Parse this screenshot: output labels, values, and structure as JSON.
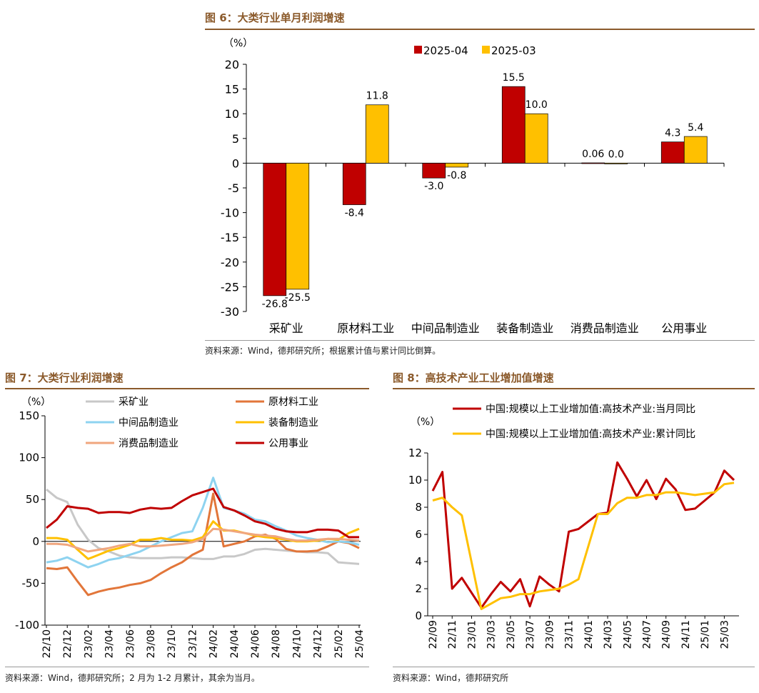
{
  "figures": [
    {
      "title": "图 6：大类行业单月利润增速",
      "source": "资料来源：Wind，德邦研究所；根据累计值与累计同比倒算。"
    },
    {
      "title": "图 7：大类行业利润增速",
      "source": "资料来源：Wind，德邦研究所；2 月为 1-2 月累计，其余为当月。"
    },
    {
      "title": "图 8：高技术产业工业增加值增速",
      "source": "资料来源：Wind，德邦研究所"
    }
  ],
  "chart_data": [
    {
      "type": "bar",
      "title": "图 6：大类行业单月利润增速",
      "ylabel": "（%）",
      "ylim": [
        -30,
        20
      ],
      "yticks": [
        "20",
        "15",
        "10",
        "5",
        "0",
        "-5",
        "-10",
        "-15",
        "-20",
        "-25",
        "-30"
      ],
      "categories": [
        "采矿业",
        "原材料工业",
        "中间品制造业",
        "装备制造业",
        "消费品制造业",
        "公用事业"
      ],
      "series": [
        {
          "name": "2025-04",
          "color": "#C00000",
          "values": [
            -26.8,
            -8.4,
            -3.0,
            15.5,
            0.06,
            4.3
          ],
          "labels": [
            "-26.8",
            "-8.4",
            "-3.0",
            "15.5",
            "0.06",
            "4.3"
          ]
        },
        {
          "name": "2025-03",
          "color": "#FFC000",
          "values": [
            -25.5,
            11.8,
            -0.8,
            10.0,
            0.0,
            5.4
          ],
          "labels": [
            "-25.5",
            "11.8",
            "-0.8",
            "10.0",
            "0.0",
            "5.4"
          ]
        }
      ],
      "legend_position": "top-right"
    },
    {
      "type": "line",
      "title": "图 7：大类行业利润增速",
      "ylabel": "（%）",
      "ylim": [
        -100,
        150
      ],
      "yticks": [
        "150",
        "100",
        "50",
        "0",
        "-50",
        "-100"
      ],
      "x": [
        "22/10",
        "22/11",
        "22/12",
        "23/01",
        "23/02",
        "23/03",
        "23/04",
        "23/05",
        "23/06",
        "23/07",
        "23/08",
        "23/09",
        "23/10",
        "23/11",
        "23/12",
        "24/01",
        "24/02",
        "24/03",
        "24/04",
        "24/05",
        "24/06",
        "24/07",
        "24/08",
        "24/09",
        "24/10",
        "24/11",
        "24/12",
        "25/01",
        "25/02",
        "25/03",
        "25/04"
      ],
      "xticks": [
        "22/10",
        "22/12",
        "23/02",
        "23/04",
        "23/06",
        "23/08",
        "23/10",
        "23/12",
        "24/02",
        "24/04",
        "24/06",
        "24/08",
        "24/10",
        "24/12",
        "25/02",
        "25/04"
      ],
      "series": [
        {
          "name": "采矿业",
          "color": "#C8C8C8",
          "values": [
            62,
            52,
            47,
            20,
            2,
            -8,
            -12,
            -17,
            -19,
            -20,
            -20,
            -20,
            -19,
            -19,
            -20,
            -21,
            -21,
            -18,
            -18,
            -15,
            -10,
            -9,
            -10,
            -11,
            -12,
            -13,
            -13,
            -14,
            -25,
            -26,
            -27
          ]
        },
        {
          "name": "原材料工业",
          "color": "#E2763A",
          "values": [
            -32,
            -33,
            -31,
            -48,
            -64,
            -60,
            -57,
            -55,
            -52,
            -50,
            -46,
            -38,
            -31,
            -25,
            -16,
            -10,
            57,
            -6,
            -3,
            0,
            6,
            8,
            3,
            -9,
            -12,
            -12,
            -11,
            -6,
            0,
            -2,
            -8
          ]
        },
        {
          "name": "中间品制造业",
          "color": "#8ED3F0",
          "values": [
            -25,
            -23,
            -19,
            -25,
            -31,
            -27,
            -22,
            -20,
            -16,
            -12,
            -6,
            0,
            5,
            10,
            12,
            40,
            76,
            40,
            37,
            33,
            26,
            24,
            18,
            13,
            7,
            4,
            2,
            -1,
            0,
            -1,
            -4
          ]
        },
        {
          "name": "装备制造业",
          "color": "#FFC000",
          "values": [
            4,
            4,
            2,
            -10,
            -21,
            -16,
            -11,
            -8,
            -4,
            2,
            2,
            4,
            2,
            2,
            1,
            5,
            24,
            13,
            13,
            10,
            7,
            5,
            4,
            2,
            0,
            0,
            1,
            3,
            2,
            10,
            15
          ]
        },
        {
          "name": "消费品制造业",
          "color": "#F0A67E",
          "values": [
            -3,
            -3,
            -4,
            -8,
            -12,
            -10,
            -8,
            -5,
            -3,
            -6,
            -6,
            -5,
            -4,
            -3,
            -1,
            3,
            15,
            14,
            12,
            10,
            8,
            7,
            6,
            3,
            1,
            1,
            2,
            3,
            3,
            2,
            1
          ]
        },
        {
          "name": "公用事业",
          "color": "#C00000",
          "values": [
            16,
            26,
            42,
            40,
            39,
            34,
            35,
            35,
            34,
            38,
            40,
            39,
            40,
            48,
            55,
            59,
            63,
            41,
            37,
            31,
            24,
            21,
            15,
            12,
            11,
            11,
            14,
            14,
            13,
            5,
            5
          ]
        }
      ],
      "legend_position": "top"
    },
    {
      "type": "line",
      "title": "图 8：高技术产业工业增加值增速",
      "ylabel": "（%）",
      "ylim": [
        0,
        12
      ],
      "yticks": [
        "12",
        "10",
        "8",
        "6",
        "4",
        "2",
        "0"
      ],
      "x": [
        "22/09",
        "22/10",
        "22/11",
        "22/12",
        "23/01",
        "23/02",
        "23/03",
        "23/04",
        "23/05",
        "23/06",
        "23/07",
        "23/08",
        "23/09",
        "23/10",
        "23/11",
        "23/12",
        "24/01",
        "24/02",
        "24/03",
        "24/04",
        "24/05",
        "24/06",
        "24/07",
        "24/08",
        "24/09",
        "24/10",
        "24/11",
        "24/12",
        "25/01",
        "25/02",
        "25/03",
        "25/04"
      ],
      "xticks": [
        "22/09",
        "22/11",
        "23/01",
        "23/03",
        "23/05",
        "23/07",
        "23/09",
        "23/11",
        "24/01",
        "24/03",
        "24/05",
        "24/07",
        "24/09",
        "24/11",
        "25/01",
        "25/03"
      ],
      "series": [
        {
          "name": "中国:规模以上工业增加值:高技术产业:当月同比",
          "color": "#C00000",
          "values": [
            9.2,
            10.6,
            2.0,
            2.8,
            null,
            0.6,
            1.6,
            2.5,
            1.8,
            2.7,
            0.7,
            2.9,
            2.3,
            1.8,
            6.2,
            6.4,
            null,
            7.5,
            7.6,
            11.3,
            10.1,
            8.8,
            10.0,
            8.6,
            10.1,
            9.3,
            7.8,
            7.9,
            null,
            9.1,
            10.7,
            10.0
          ]
        },
        {
          "name": "中国:规模以上工业增加值:高技术产业:累计同比",
          "color": "#FFC000",
          "values": [
            8.5,
            8.7,
            8.0,
            7.4,
            null,
            0.5,
            0.9,
            1.3,
            1.4,
            1.6,
            1.6,
            1.8,
            1.9,
            2.0,
            2.3,
            2.7,
            null,
            7.5,
            7.5,
            8.3,
            8.7,
            8.7,
            8.9,
            8.9,
            9.1,
            9.1,
            9.0,
            8.9,
            null,
            9.1,
            9.7,
            9.8
          ]
        }
      ],
      "legend_position": "top"
    }
  ]
}
